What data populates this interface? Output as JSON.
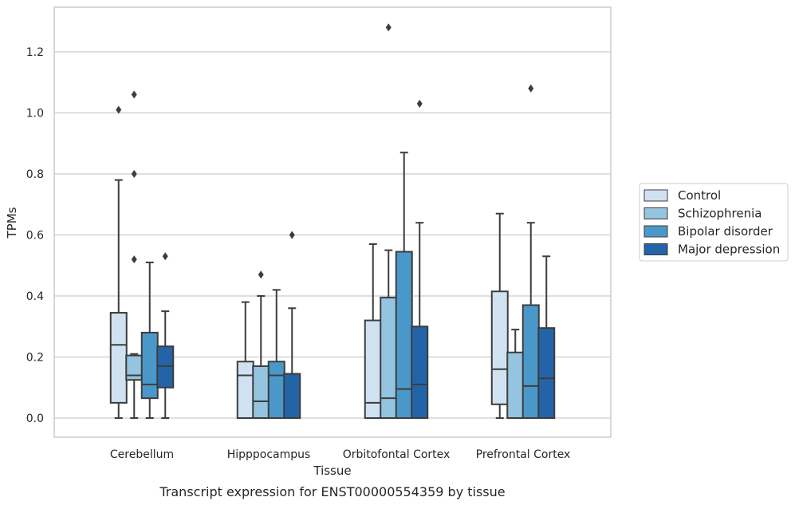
{
  "chart_data": {
    "type": "boxplot",
    "caption": "Transcript expression for ENST00000554359 by tissue",
    "xlabel": "Tissue",
    "ylabel": "TPMs",
    "ylim": [
      -0.06,
      1.35
    ],
    "yticks": [
      0.0,
      0.2,
      0.4,
      0.6,
      0.8,
      1.0,
      1.2
    ],
    "ytick_labels": [
      "0.0",
      "0.2",
      "0.4",
      "0.6",
      "0.8",
      "1.0",
      "1.2"
    ],
    "grid": true,
    "legend_position": "right",
    "categories": [
      "Cerebellum",
      "Hipppocampus",
      "Orbitofontal Cortex",
      "Prefrontal Cortex"
    ],
    "series": [
      {
        "name": "Control",
        "color": "#d0e1f2",
        "boxes": [
          {
            "whislo": 0.0,
            "q1": 0.05,
            "med": 0.24,
            "q3": 0.345,
            "whishi": 0.78,
            "fliers": [
              1.01
            ]
          },
          {
            "whislo": 0.0,
            "q1": 0.0,
            "med": 0.14,
            "q3": 0.185,
            "whishi": 0.38,
            "fliers": []
          },
          {
            "whislo": 0.0,
            "q1": 0.0,
            "med": 0.05,
            "q3": 0.32,
            "whishi": 0.57,
            "fliers": []
          },
          {
            "whislo": 0.0,
            "q1": 0.045,
            "med": 0.16,
            "q3": 0.415,
            "whishi": 0.67,
            "fliers": []
          }
        ]
      },
      {
        "name": "Schizophrenia",
        "color": "#94c4df",
        "boxes": [
          {
            "whislo": 0.0,
            "q1": 0.125,
            "med": 0.14,
            "q3": 0.205,
            "whishi": 0.21,
            "fliers": [
              0.52,
              0.8,
              1.06
            ]
          },
          {
            "whislo": 0.0,
            "q1": 0.0,
            "med": 0.055,
            "q3": 0.17,
            "whishi": 0.4,
            "fliers": [
              0.47
            ]
          },
          {
            "whislo": 0.0,
            "q1": 0.0,
            "med": 0.065,
            "q3": 0.395,
            "whishi": 0.55,
            "fliers": [
              1.28
            ]
          },
          {
            "whislo": 0.0,
            "q1": 0.0,
            "med": 0.0,
            "q3": 0.215,
            "whishi": 0.29,
            "fliers": []
          }
        ]
      },
      {
        "name": "Bipolar disorder",
        "color": "#4a98c9",
        "boxes": [
          {
            "whislo": 0.0,
            "q1": 0.065,
            "med": 0.11,
            "q3": 0.28,
            "whishi": 0.51,
            "fliers": []
          },
          {
            "whislo": 0.0,
            "q1": 0.0,
            "med": 0.14,
            "q3": 0.185,
            "whishi": 0.42,
            "fliers": []
          },
          {
            "whislo": 0.0,
            "q1": 0.0,
            "med": 0.095,
            "q3": 0.545,
            "whishi": 0.87,
            "fliers": []
          },
          {
            "whislo": 0.0,
            "q1": 0.0,
            "med": 0.105,
            "q3": 0.37,
            "whishi": 0.64,
            "fliers": [
              1.08
            ]
          }
        ]
      },
      {
        "name": "Major depression",
        "color": "#2363a8",
        "boxes": [
          {
            "whislo": 0.0,
            "q1": 0.1,
            "med": 0.17,
            "q3": 0.235,
            "whishi": 0.35,
            "fliers": [
              0.53
            ]
          },
          {
            "whislo": 0.0,
            "q1": 0.0,
            "med": 0.0,
            "q3": 0.145,
            "whishi": 0.36,
            "fliers": [
              0.6
            ]
          },
          {
            "whislo": 0.0,
            "q1": 0.0,
            "med": 0.11,
            "q3": 0.3,
            "whishi": 0.64,
            "fliers": [
              1.03
            ]
          },
          {
            "whislo": 0.0,
            "q1": 0.0,
            "med": 0.13,
            "q3": 0.295,
            "whishi": 0.53,
            "fliers": []
          }
        ]
      }
    ]
  }
}
